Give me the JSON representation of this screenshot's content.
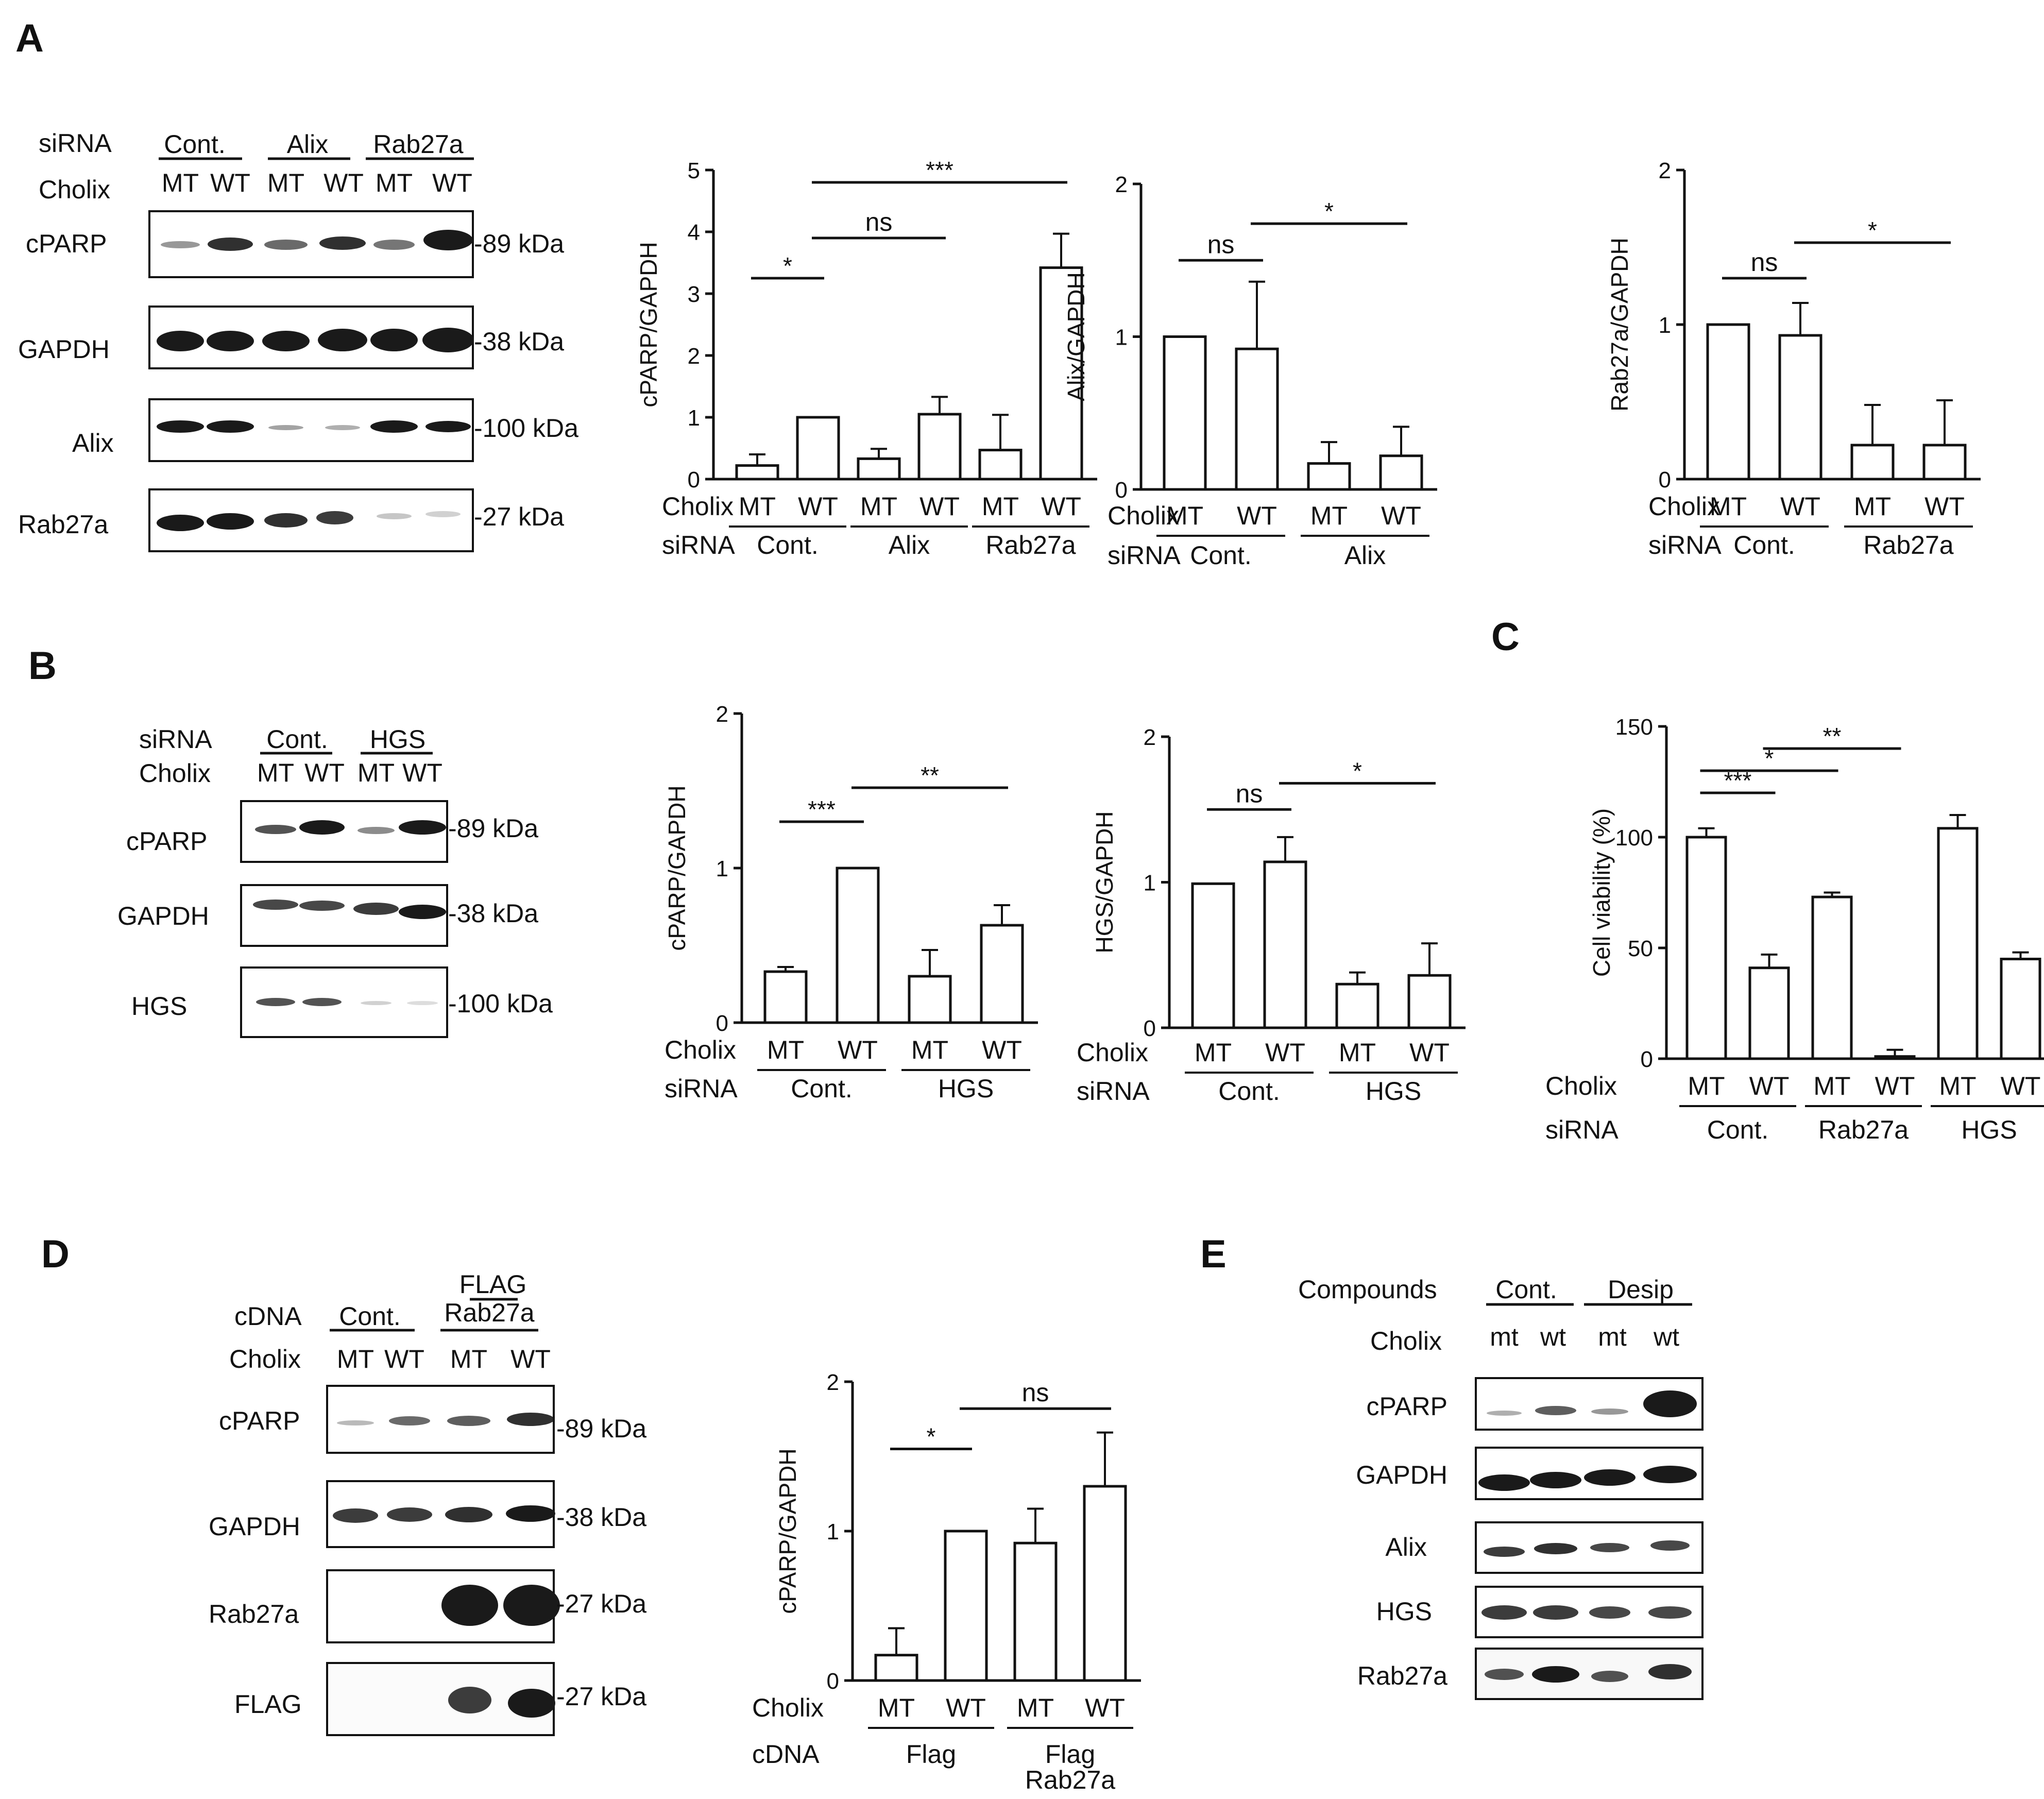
{
  "figure": {
    "panels": {
      "A": {
        "letter": "A",
        "blot": {
          "rows": [
            "siRNA",
            "Cholix"
          ],
          "groups": [
            "Cont.",
            "Alix",
            "Rab27a"
          ],
          "lanes": [
            "MT",
            "WT",
            "MT",
            "WT",
            "MT",
            "WT"
          ],
          "bands": [
            {
              "name": "cPARP",
              "size": "-89 kDa"
            },
            {
              "name": "GAPDH",
              "size": "-38 kDa"
            },
            {
              "name": "Alix",
              "size": "-100 kDa"
            },
            {
              "name": "Rab27a",
              "size": "-27 kDa"
            }
          ]
        }
      },
      "B": {
        "letter": "B",
        "blot": {
          "rows": [
            "siRNA",
            "Cholix"
          ],
          "groups": [
            "Cont.",
            "HGS"
          ],
          "lanes": [
            "MT",
            "WT",
            "MT",
            "WT"
          ],
          "bands": [
            {
              "name": "cPARP",
              "size": "-89 kDa"
            },
            {
              "name": "GAPDH",
              "size": "-38 kDa"
            },
            {
              "name": "HGS",
              "size": "-100 kDa"
            }
          ]
        }
      },
      "C": {
        "letter": "C"
      },
      "D": {
        "letter": "D",
        "blot": {
          "rows": [
            "cDNA",
            "Cholix"
          ],
          "groups": [
            "Cont.",
            "FLAG",
            "Rab27a"
          ],
          "lanes": [
            "MT",
            "WT",
            "MT",
            "WT"
          ],
          "bands": [
            {
              "name": "cPARP",
              "size": "-89 kDa"
            },
            {
              "name": "GAPDH",
              "size": "-38 kDa"
            },
            {
              "name": "Rab27a",
              "size": "-27 kDa"
            },
            {
              "name": "FLAG",
              "size": "-27 kDa"
            }
          ]
        }
      },
      "E": {
        "letter": "E",
        "blot": {
          "rows": [
            "Compounds",
            "Cholix"
          ],
          "groups": [
            "Cont.",
            "Desip"
          ],
          "lanes": [
            "mt",
            "wt",
            "mt",
            "wt"
          ],
          "bands": [
            "cPARP",
            "GAPDH",
            "Alix",
            "HGS",
            "Rab27a"
          ]
        }
      }
    }
  },
  "chart_data": [
    {
      "id": "A1",
      "type": "bar",
      "categories": [
        "MT",
        "WT",
        "MT",
        "WT",
        "MT",
        "WT"
      ],
      "values": [
        0.22,
        1.0,
        0.33,
        1.05,
        0.47,
        3.42
      ],
      "errors": [
        0.18,
        0,
        0.16,
        0.28,
        0.57,
        0.55
      ],
      "ylabel": "cPARP/GAPDH",
      "ylim": [
        0,
        5
      ],
      "yticks": [
        0,
        1,
        2,
        3,
        4,
        5
      ],
      "row1_label": "Cholix",
      "row2_label": "siRNA",
      "groups": [
        {
          "label": "Cont.",
          "from": 0,
          "to": 1
        },
        {
          "label": "Alix",
          "from": 2,
          "to": 3
        },
        {
          "label": "Rab27a",
          "from": 4,
          "to": 5
        }
      ],
      "sig": [
        {
          "from": 0,
          "to": 1,
          "y": 3.25,
          "label": "*"
        },
        {
          "from": 1,
          "to": 3,
          "y": 3.9,
          "label": "ns"
        },
        {
          "from": 1,
          "to": 5,
          "y": 4.8,
          "label": "***"
        }
      ]
    },
    {
      "id": "A2",
      "type": "bar",
      "categories": [
        "MT",
        "WT",
        "MT",
        "WT"
      ],
      "values": [
        1.0,
        0.92,
        0.17,
        0.22
      ],
      "errors": [
        0,
        0.44,
        0.14,
        0.19
      ],
      "ylabel": "Alix/GAPDH",
      "ylim": [
        0,
        2
      ],
      "yticks": [
        0,
        1,
        2
      ],
      "row1_label": "Cholix",
      "row2_label": "siRNA",
      "groups": [
        {
          "label": "Cont.",
          "from": 0,
          "to": 1
        },
        {
          "label": "Alix",
          "from": 2,
          "to": 3
        }
      ],
      "sig": [
        {
          "from": 0,
          "to": 1,
          "y": 1.5,
          "label": "ns"
        },
        {
          "from": 1,
          "to": 3,
          "y": 1.74,
          "label": "*"
        }
      ]
    },
    {
      "id": "A3",
      "type": "bar",
      "categories": [
        "MT",
        "WT",
        "MT",
        "WT"
      ],
      "values": [
        1.0,
        0.93,
        0.22,
        0.22
      ],
      "errors": [
        0,
        0.21,
        0.26,
        0.29
      ],
      "ylabel": "Rab27a/GAPDH",
      "ylim": [
        0,
        2
      ],
      "yticks": [
        0,
        1,
        2
      ],
      "row1_label": "Cholix",
      "row2_label": "siRNA",
      "groups": [
        {
          "label": "Cont.",
          "from": 0,
          "to": 1
        },
        {
          "label": "Rab27a",
          "from": 2,
          "to": 3
        }
      ],
      "sig": [
        {
          "from": 0,
          "to": 1,
          "y": 1.3,
          "label": "ns"
        },
        {
          "from": 1,
          "to": 3,
          "y": 1.53,
          "label": "*"
        }
      ]
    },
    {
      "id": "B1",
      "type": "bar",
      "categories": [
        "MT",
        "WT",
        "MT",
        "WT"
      ],
      "values": [
        0.33,
        1.0,
        0.3,
        0.63
      ],
      "errors": [
        0.03,
        0,
        0.17,
        0.13
      ],
      "ylabel": "cPARP/GAPDH",
      "ylim": [
        0,
        2
      ],
      "yticks": [
        0,
        1,
        2
      ],
      "row1_label": "Cholix",
      "row2_label": "siRNA",
      "groups": [
        {
          "label": "Cont.",
          "from": 0,
          "to": 1
        },
        {
          "label": "HGS",
          "from": 2,
          "to": 3
        }
      ],
      "sig": [
        {
          "from": 0,
          "to": 1,
          "y": 1.3,
          "label": "***"
        },
        {
          "from": 1,
          "to": 3,
          "y": 1.52,
          "label": "**"
        }
      ]
    },
    {
      "id": "B2",
      "type": "bar",
      "categories": [
        "MT",
        "WT",
        "MT",
        "WT"
      ],
      "values": [
        0.99,
        1.14,
        0.3,
        0.36
      ],
      "errors": [
        0,
        0.17,
        0.08,
        0.22
      ],
      "ylabel": "HGS/GAPDH",
      "ylim": [
        0,
        2
      ],
      "yticks": [
        0,
        1,
        2
      ],
      "row1_label": "Cholix",
      "row2_label": "siRNA",
      "groups": [
        {
          "label": "Cont.",
          "from": 0,
          "to": 1
        },
        {
          "label": "HGS",
          "from": 2,
          "to": 3
        }
      ],
      "sig": [
        {
          "from": 0,
          "to": 1,
          "y": 1.5,
          "label": "ns"
        },
        {
          "from": 1,
          "to": 3,
          "y": 1.68,
          "label": "*"
        }
      ]
    },
    {
      "id": "C",
      "type": "bar",
      "categories": [
        "MT",
        "WT",
        "MT",
        "WT",
        "MT",
        "WT"
      ],
      "values": [
        100,
        41,
        73,
        1,
        104,
        45
      ],
      "errors": [
        4,
        6,
        2,
        3,
        6,
        3
      ],
      "ylabel": "Cell viability (%)",
      "ylim": [
        0,
        150
      ],
      "yticks": [
        0,
        50,
        100,
        150
      ],
      "row1_label": "Cholix",
      "row2_label": "siRNA",
      "groups": [
        {
          "label": "Cont.",
          "from": 0,
          "to": 1
        },
        {
          "label": "Rab27a",
          "from": 2,
          "to": 3
        },
        {
          "label": "HGS",
          "from": 4,
          "to": 5
        }
      ],
      "sig": [
        {
          "from": 0,
          "to": 1,
          "y": 120,
          "label": "***"
        },
        {
          "from": 0,
          "to": 2,
          "y": 130,
          "label": "*"
        },
        {
          "from": 1,
          "to": 3,
          "y": 140,
          "label": "**"
        }
      ]
    },
    {
      "id": "D",
      "type": "bar",
      "categories": [
        "MT",
        "WT",
        "MT",
        "WT"
      ],
      "values": [
        0.17,
        1.0,
        0.92,
        1.3
      ],
      "errors": [
        0.18,
        0,
        0.23,
        0.36
      ],
      "ylabel": "cPARP/GAPDH",
      "ylim": [
        0,
        2
      ],
      "yticks": [
        0,
        1,
        2
      ],
      "row1_label": "Cholix",
      "row2_label": "cDNA",
      "groups": [
        {
          "label": "Flag",
          "from": 0,
          "to": 1
        },
        {
          "label": "Flag\nRab27a",
          "from": 2,
          "to": 3
        }
      ],
      "sig": [
        {
          "from": 0,
          "to": 1,
          "y": 1.55,
          "label": "*"
        },
        {
          "from": 1,
          "to": 3,
          "y": 1.82,
          "label": "ns"
        }
      ]
    }
  ]
}
